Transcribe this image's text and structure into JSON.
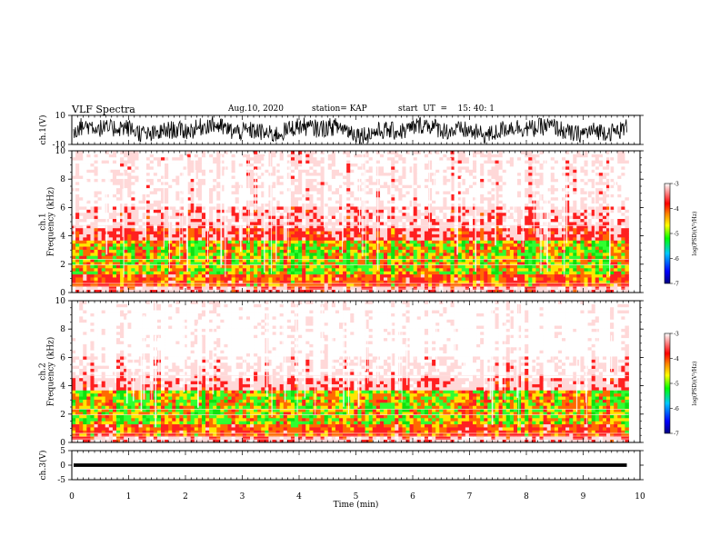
{
  "header": {
    "title": "VLF Spectra",
    "date": "Aug.10, 2020",
    "station": "station= KAP",
    "start": "start  UT  =    15: 40: 1"
  },
  "chart_data": [
    {
      "type": "line",
      "name": "ch1-waveform",
      "ylabel": "ch.1(V)",
      "ylim": [
        -10,
        10
      ],
      "yticks": [
        "10",
        "-10"
      ],
      "xlim": [
        0,
        10
      ],
      "data_end_min": 9.8
    },
    {
      "type": "heatmap",
      "name": "ch1-spectrogram",
      "ylabel": "ch.1\nFrequency (kHz)",
      "ylim": [
        0,
        10
      ],
      "yticks": [
        "0",
        "2",
        "4",
        "6",
        "8",
        "10"
      ],
      "xlim": [
        0,
        10
      ],
      "colorbar": {
        "label": "log(PSD)(V²/Hz)",
        "range": [
          -7,
          -3
        ],
        "ticks": [
          "-3",
          "-4",
          "-5",
          "-6",
          "-7"
        ]
      }
    },
    {
      "type": "heatmap",
      "name": "ch2-spectrogram",
      "ylabel": "ch.2\nFrequency (kHz)",
      "ylim": [
        0,
        10
      ],
      "yticks": [
        "0",
        "2",
        "4",
        "6",
        "8",
        "10"
      ],
      "xlim": [
        0,
        10
      ],
      "colorbar": {
        "label": "log(PSD)(V²/Hz)",
        "range": [
          -7,
          -3
        ],
        "ticks": [
          "-3",
          "-4",
          "-5",
          "-6",
          "-7"
        ]
      }
    },
    {
      "type": "line",
      "name": "ch3-waveform",
      "ylabel": "ch.3(V)",
      "ylim": [
        -5,
        5
      ],
      "yticks": [
        "5",
        "0",
        "-5"
      ],
      "xlim": [
        0,
        10
      ],
      "data_end_min": 9.8
    }
  ],
  "xaxis": {
    "label": "Time  (min)",
    "ticks": [
      "0",
      "1",
      "2",
      "3",
      "4",
      "5",
      "6",
      "7",
      "8",
      "9",
      "10"
    ]
  }
}
